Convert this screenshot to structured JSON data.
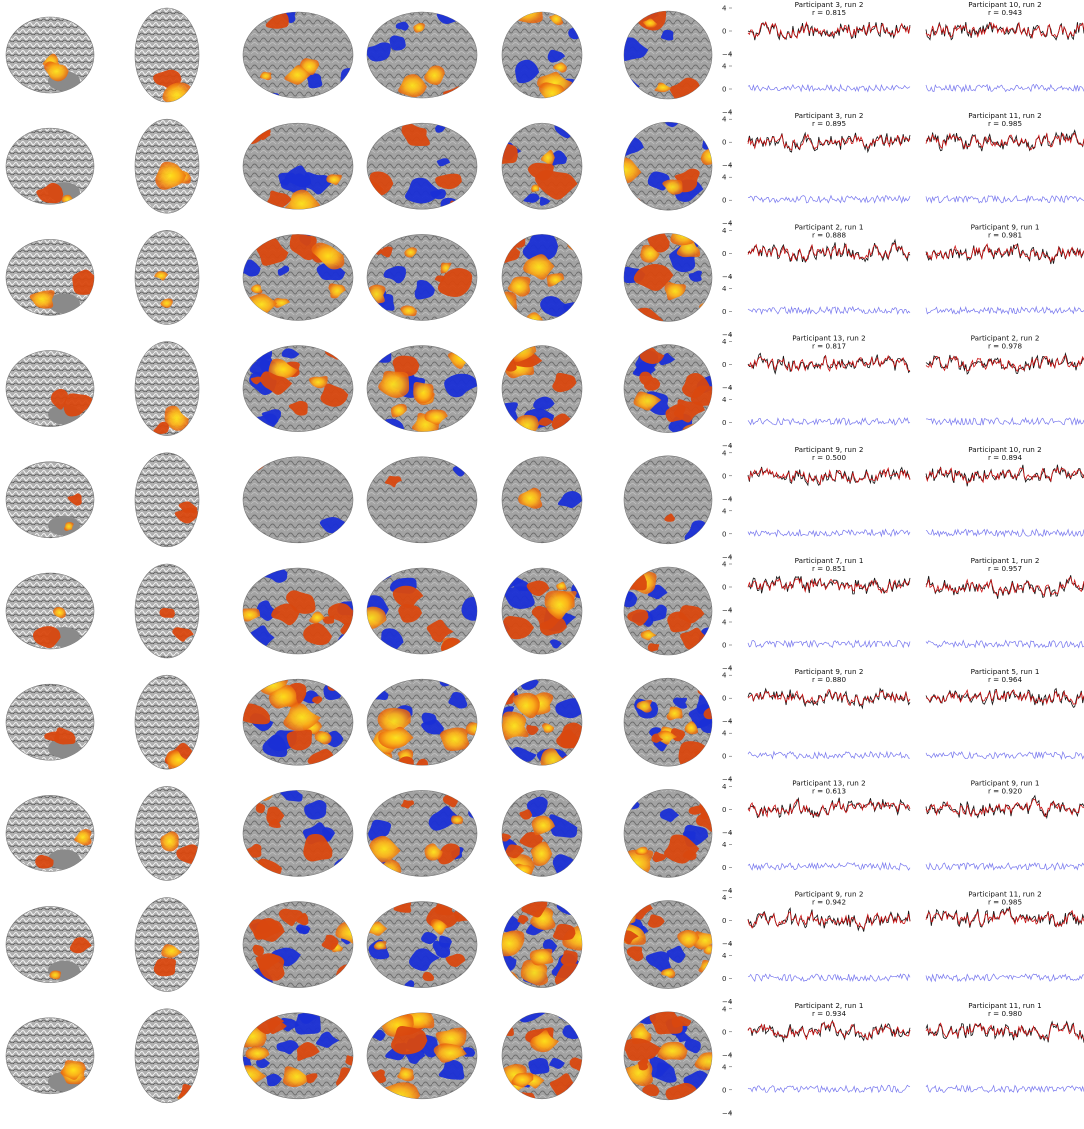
{
  "figure": {
    "views": [
      "sagittal",
      "axial",
      "lateral-left",
      "lateral-right",
      "posterior",
      "anterior"
    ],
    "colormap": {
      "positive_low": "#d43d0c",
      "positive_high": "#ffe51a",
      "negative": "#1a2fd6",
      "cortex": "#9b9b9b"
    },
    "trace_colors": {
      "observed": "#111111",
      "predicted": "#cc1111",
      "residual": "#7777ee"
    },
    "y_ticks_top": [
      "4",
      "0",
      "−4"
    ],
    "y_ticks_bottom": [
      "4",
      "0",
      "−4"
    ]
  },
  "rows": [
    {
      "left_panel": {
        "title": "Participant 3, run 2",
        "r": "r = 0.815"
      },
      "right_panel": {
        "title": "Participant 10, run 2",
        "r": "r = 0.943"
      }
    },
    {
      "left_panel": {
        "title": "Participant 3, run 2",
        "r": "r = 0.895"
      },
      "right_panel": {
        "title": "Participant 11, run 2",
        "r": "r = 0.985"
      }
    },
    {
      "left_panel": {
        "title": "Participant 2, run 1",
        "r": "r = 0.888"
      },
      "right_panel": {
        "title": "Participant 9, run 1",
        "r": "r = 0.981"
      }
    },
    {
      "left_panel": {
        "title": "Participant 13, run 2",
        "r": "r = 0.817"
      },
      "right_panel": {
        "title": "Participant 2, run 2",
        "r": "r = 0.978"
      }
    },
    {
      "left_panel": {
        "title": "Participant 9, run 2",
        "r": "r = 0.500"
      },
      "right_panel": {
        "title": "Participant 10, run 2",
        "r": "r = 0.894"
      }
    },
    {
      "left_panel": {
        "title": "Participant 7, run 1",
        "r": "r = 0.851"
      },
      "right_panel": {
        "title": "Participant 1, run 2",
        "r": "r = 0.957"
      }
    },
    {
      "left_panel": {
        "title": "Participant 9, run 2",
        "r": "r = 0.880"
      },
      "right_panel": {
        "title": "Participant 5, run 1",
        "r": "r = 0.964"
      }
    },
    {
      "left_panel": {
        "title": "Participant 13, run 2",
        "r": "r = 0.613"
      },
      "right_panel": {
        "title": "Participant 9, run 1",
        "r": "r = 0.920"
      }
    },
    {
      "left_panel": {
        "title": "Participant 9, run 2",
        "r": "r = 0.942"
      },
      "right_panel": {
        "title": "Participant 11, run 2",
        "r": "r = 0.985"
      }
    },
    {
      "left_panel": {
        "title": "Participant 2, run 1",
        "r": "r = 0.934"
      },
      "right_panel": {
        "title": "Participant 11, run 1",
        "r": "r = 0.980"
      }
    }
  ]
}
